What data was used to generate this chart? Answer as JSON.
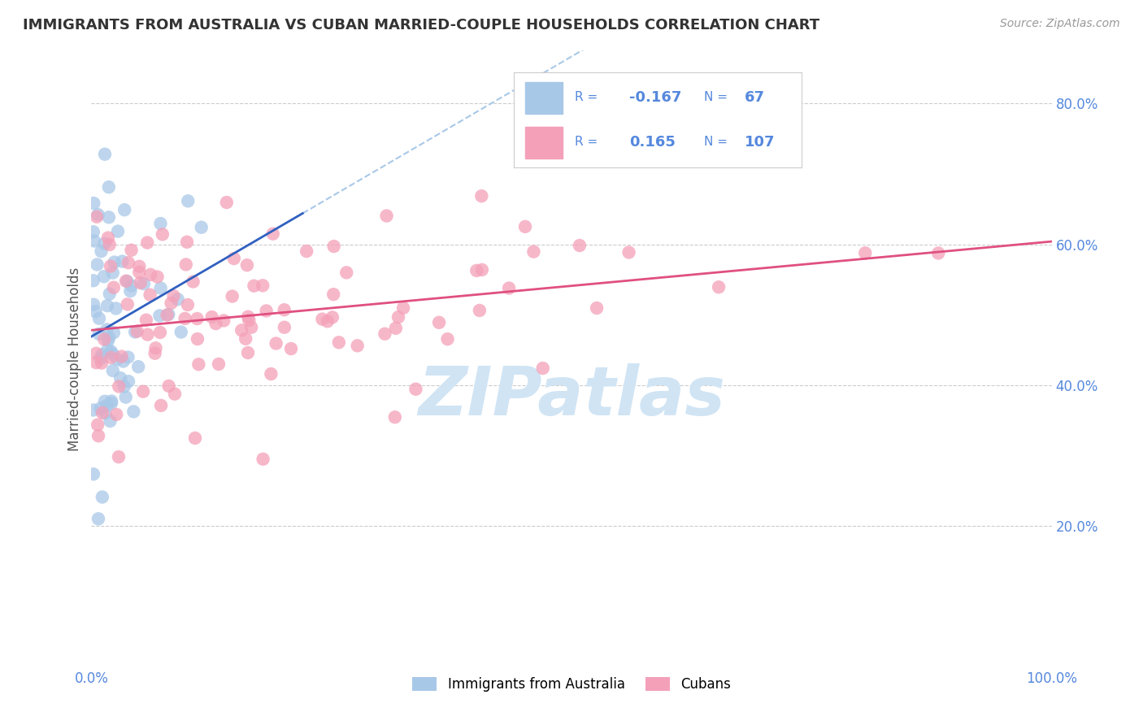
{
  "title": "IMMIGRANTS FROM AUSTRALIA VS CUBAN MARRIED-COUPLE HOUSEHOLDS CORRELATION CHART",
  "source": "Source: ZipAtlas.com",
  "ylabel": "Married-couple Households",
  "xlabel": "",
  "xlim": [
    0.0,
    1.0
  ],
  "ylim": [
    0.0,
    0.875
  ],
  "color_blue": "#a8c8e8",
  "color_pink": "#f4a0b8",
  "trendline_blue_solid": "#3060c0",
  "trendline_blue_dashed": "#a8c8e8",
  "trendline_pink": "#e05080",
  "watermark": "ZIPatlas",
  "watermark_color": "#d0e4f4",
  "background": "#ffffff",
  "grid_color": "#cccccc",
  "legend_R1": "-0.167",
  "legend_N1": "67",
  "legend_R2": "0.165",
  "legend_N2": "107",
  "legend_color": "#5588dd",
  "title_color": "#333333",
  "source_color": "#999999"
}
